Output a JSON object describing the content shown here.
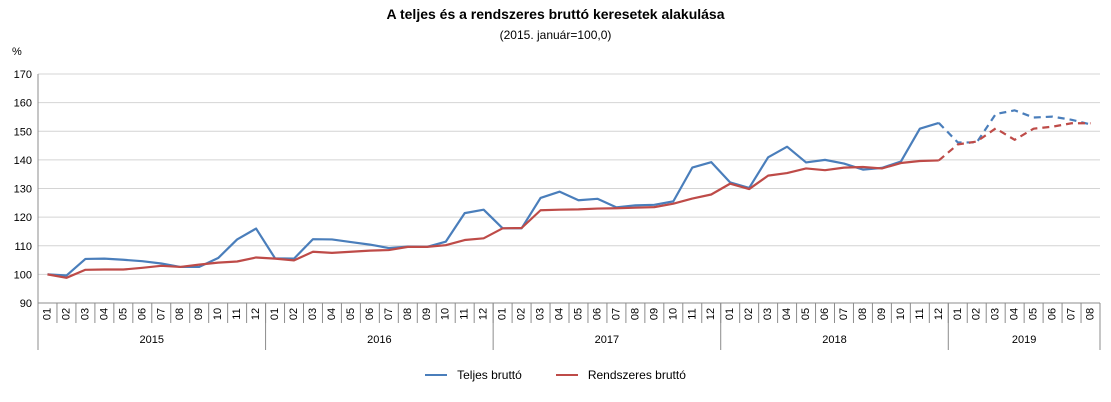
{
  "chart_data": {
    "type": "line",
    "title": "A teljes és a rendszeres bruttó keresetek alakulása",
    "subtitle": "(2015. január=100,0)",
    "ylabel": "%",
    "ylim": [
      90,
      170
    ],
    "yticks": [
      90,
      100,
      110,
      120,
      130,
      140,
      150,
      160,
      170
    ],
    "grid": true,
    "legend_position": "bottom",
    "years": [
      {
        "label": "2015",
        "months": 12
      },
      {
        "label": "2016",
        "months": 12
      },
      {
        "label": "2017",
        "months": 12
      },
      {
        "label": "2018",
        "months": 12
      },
      {
        "label": "2019",
        "months": 8
      }
    ],
    "month_labels": [
      "01",
      "02",
      "03",
      "04",
      "05",
      "06",
      "07",
      "08",
      "09",
      "10",
      "11",
      "12"
    ],
    "dashed_from_index": 47,
    "series": [
      {
        "name": "Teljes bruttó",
        "color": "#4a7ebb",
        "values": [
          100.0,
          99.6,
          105.4,
          105.5,
          105.1,
          104.6,
          103.8,
          102.6,
          102.6,
          105.7,
          112.2,
          116.0,
          105.6,
          105.5,
          112.3,
          112.2,
          111.3,
          110.4,
          109.2,
          109.7,
          109.6,
          111.4,
          121.4,
          122.6,
          116.1,
          116.1,
          126.7,
          128.9,
          125.9,
          126.4,
          123.4,
          124.1,
          124.3,
          125.5,
          137.3,
          139.2,
          132.1,
          130.2,
          140.9,
          144.6,
          139.1,
          140.0,
          138.7,
          136.6,
          137.2,
          139.4,
          150.9,
          152.9,
          146.1,
          146.1,
          156.0,
          157.3,
          154.8,
          155.1,
          154.0,
          152.4
        ]
      },
      {
        "name": "Rendszeres bruttó",
        "color": "#be4b48",
        "values": [
          100.0,
          98.8,
          101.6,
          101.7,
          101.7,
          102.3,
          103.0,
          102.6,
          103.4,
          104.1,
          104.5,
          105.9,
          105.5,
          104.9,
          107.9,
          107.5,
          107.9,
          108.3,
          108.5,
          109.6,
          109.6,
          110.2,
          112.0,
          112.6,
          116.1,
          116.2,
          122.4,
          122.6,
          122.7,
          123.0,
          123.1,
          123.3,
          123.5,
          124.7,
          126.5,
          127.9,
          131.7,
          129.8,
          134.5,
          135.4,
          137.0,
          136.4,
          137.3,
          137.5,
          137.0,
          138.9,
          139.6,
          139.8,
          145.4,
          146.4,
          151.0,
          147.0,
          150.9,
          151.6,
          152.8,
          152.8
        ]
      }
    ]
  }
}
